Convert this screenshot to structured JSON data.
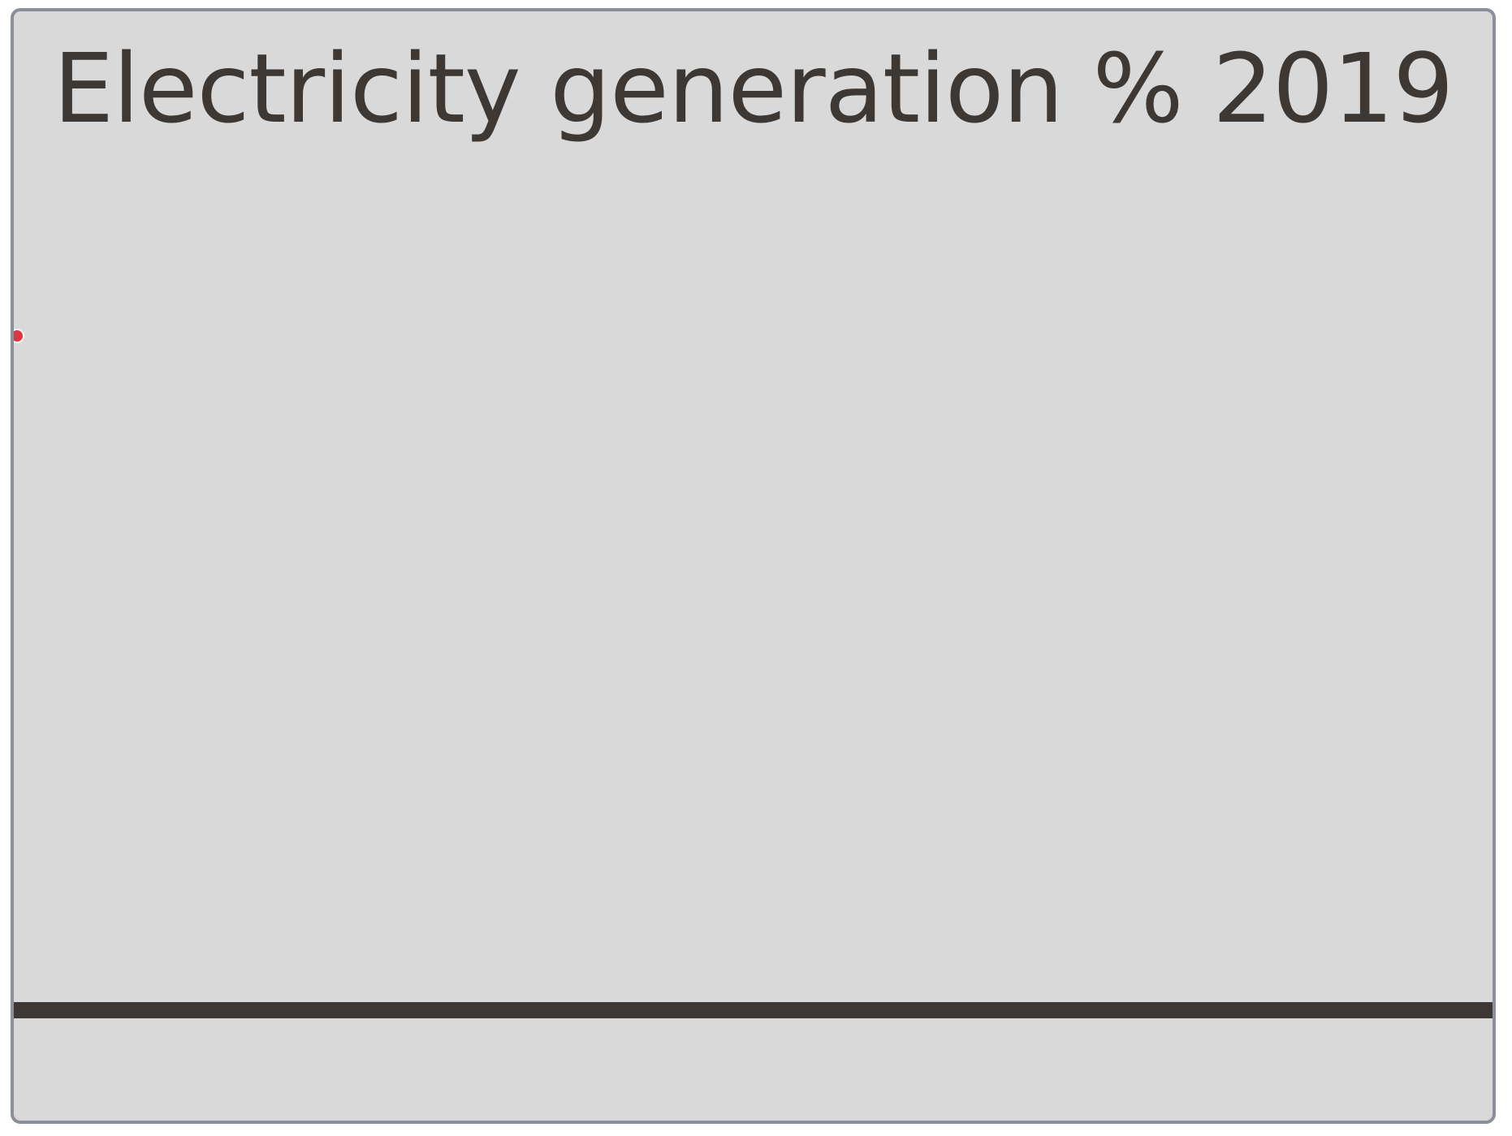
{
  "chart_data": {
    "type": "line",
    "title": "Electricity generation % 2019",
    "xlabel": "",
    "ylabel": "",
    "grid": false,
    "series": [
      {
        "values": []
      }
    ],
    "marker_color": "#e0343e",
    "baseline_color": "#3d3833",
    "background_color": "#d9d9d9"
  }
}
